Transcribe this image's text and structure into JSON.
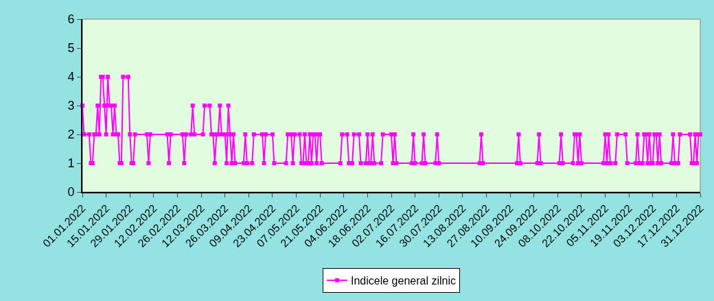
{
  "chart_data": {
    "type": "line",
    "x": [
      "2022-01-01",
      "2022-01-02",
      "2022-01-05",
      "2022-01-06",
      "2022-01-07",
      "2022-01-08",
      "2022-01-09",
      "2022-01-10",
      "2022-01-11",
      "2022-01-12",
      "2022-01-13",
      "2022-01-14",
      "2022-01-15",
      "2022-01-16",
      "2022-01-17",
      "2022-01-18",
      "2022-01-19",
      "2022-01-20",
      "2022-01-21",
      "2022-01-22",
      "2022-01-23",
      "2022-01-24",
      "2022-01-25",
      "2022-01-28",
      "2022-01-29",
      "2022-01-30",
      "2022-01-31",
      "2022-02-01",
      "2022-02-08",
      "2022-02-09",
      "2022-02-10",
      "2022-02-20",
      "2022-02-21",
      "2022-02-22",
      "2022-03-01",
      "2022-03-02",
      "2022-03-03",
      "2022-03-06",
      "2022-03-07",
      "2022-03-08",
      "2022-03-13",
      "2022-03-14",
      "2022-03-17",
      "2022-03-18",
      "2022-03-19",
      "2022-03-20",
      "2022-03-21",
      "2022-03-22",
      "2022-03-23",
      "2022-03-24",
      "2022-03-26",
      "2022-03-27",
      "2022-03-28",
      "2022-03-29",
      "2022-03-30",
      "2022-03-31",
      "2022-04-01",
      "2022-04-06",
      "2022-04-07",
      "2022-04-08",
      "2022-04-11",
      "2022-04-12",
      "2022-04-17",
      "2022-04-18",
      "2022-04-19",
      "2022-04-23",
      "2022-04-24",
      "2022-05-01",
      "2022-05-02",
      "2022-05-04",
      "2022-05-05",
      "2022-05-06",
      "2022-05-09",
      "2022-05-10",
      "2022-05-11",
      "2022-05-12",
      "2022-05-13",
      "2022-05-14",
      "2022-05-15",
      "2022-05-16",
      "2022-05-17",
      "2022-05-18",
      "2022-05-19",
      "2022-05-20",
      "2022-05-21",
      "2022-05-22",
      "2022-06-02",
      "2022-06-03",
      "2022-06-06",
      "2022-06-07",
      "2022-06-09",
      "2022-06-10",
      "2022-06-13",
      "2022-06-14",
      "2022-06-17",
      "2022-06-18",
      "2022-06-19",
      "2022-06-20",
      "2022-06-21",
      "2022-06-22",
      "2022-06-26",
      "2022-06-27",
      "2022-07-02",
      "2022-07-03",
      "2022-07-04",
      "2022-07-05",
      "2022-07-14",
      "2022-07-15",
      "2022-07-16",
      "2022-07-20",
      "2022-07-21",
      "2022-07-22",
      "2022-07-28",
      "2022-07-29",
      "2022-07-30",
      "2022-08-23",
      "2022-08-24",
      "2022-08-25",
      "2022-09-14",
      "2022-09-15",
      "2022-09-16",
      "2022-09-26",
      "2022-09-27",
      "2022-09-28",
      "2022-10-09",
      "2022-10-10",
      "2022-10-11",
      "2022-10-17",
      "2022-10-18",
      "2022-10-19",
      "2022-10-20",
      "2022-10-21",
      "2022-10-22",
      "2022-11-04",
      "2022-11-05",
      "2022-11-06",
      "2022-11-07",
      "2022-11-08",
      "2022-11-11",
      "2022-11-12",
      "2022-11-17",
      "2022-11-18",
      "2022-11-23",
      "2022-11-24",
      "2022-11-25",
      "2022-11-27",
      "2022-11-28",
      "2022-11-29",
      "2022-11-30",
      "2022-12-01",
      "2022-12-02",
      "2022-12-03",
      "2022-12-04",
      "2022-12-05",
      "2022-12-06",
      "2022-12-07",
      "2022-12-08",
      "2022-12-14",
      "2022-12-15",
      "2022-12-16",
      "2022-12-18",
      "2022-12-19",
      "2022-12-25",
      "2022-12-26",
      "2022-12-27",
      "2022-12-28",
      "2022-12-29",
      "2022-12-30",
      "2022-12-31"
    ],
    "series": [
      {
        "name": "Indicele general zilnic",
        "color": "#ff00ff",
        "values": [
          3,
          2,
          2,
          1,
          1,
          2,
          2,
          3,
          2,
          4,
          4,
          3,
          2,
          4,
          3,
          3,
          2,
          3,
          2,
          2,
          1,
          1,
          4,
          4,
          2,
          1,
          1,
          2,
          2,
          1,
          2,
          2,
          1,
          2,
          2,
          1,
          2,
          2,
          3,
          2,
          2,
          3,
          3,
          2,
          2,
          1,
          2,
          2,
          3,
          2,
          2,
          1,
          3,
          2,
          1,
          2,
          1,
          1,
          2,
          1,
          1,
          2,
          2,
          1,
          2,
          2,
          1,
          1,
          2,
          2,
          1,
          2,
          2,
          1,
          1,
          2,
          1,
          1,
          2,
          1,
          2,
          2,
          1,
          2,
          2,
          1,
          1,
          2,
          2,
          1,
          1,
          2,
          2,
          1,
          1,
          2,
          1,
          1,
          2,
          1,
          1,
          2,
          2,
          1,
          2,
          1,
          1,
          2,
          1,
          1,
          2,
          1,
          1,
          2,
          1,
          1,
          2,
          1,
          1,
          2,
          1,
          1,
          2,
          1,
          1,
          2,
          1,
          1,
          2,
          2,
          1,
          2,
          1,
          1,
          2,
          1,
          2,
          1,
          1,
          2,
          2,
          1,
          1,
          2,
          1,
          1,
          2,
          2,
          1,
          2,
          1,
          1,
          2,
          2,
          1,
          2,
          1,
          1,
          2,
          1,
          1,
          2,
          2,
          1,
          1,
          2,
          1,
          2,
          2
        ]
      }
    ],
    "xlim": [
      "2022-01-01",
      "2022-12-31"
    ],
    "xticks": [
      {
        "value": "2022-01-01",
        "label": "01.01.2022"
      },
      {
        "value": "2022-01-15",
        "label": "15.01.2022"
      },
      {
        "value": "2022-01-29",
        "label": "29.01.2022"
      },
      {
        "value": "2022-02-12",
        "label": "12.02.2022"
      },
      {
        "value": "2022-02-26",
        "label": "26.02.2022"
      },
      {
        "value": "2022-03-12",
        "label": "12.03.2022"
      },
      {
        "value": "2022-03-26",
        "label": "26.03.2022"
      },
      {
        "value": "2022-04-09",
        "label": "09.04.2022"
      },
      {
        "value": "2022-04-23",
        "label": "23.04.2022"
      },
      {
        "value": "2022-05-07",
        "label": "07.05.2022"
      },
      {
        "value": "2022-05-21",
        "label": "21.05.2022"
      },
      {
        "value": "2022-06-04",
        "label": "04.06.2022"
      },
      {
        "value": "2022-06-18",
        "label": "18.06.2022"
      },
      {
        "value": "2022-07-02",
        "label": "02.07.2022"
      },
      {
        "value": "2022-07-16",
        "label": "16.07.2022"
      },
      {
        "value": "2022-07-30",
        "label": "30.07.2022"
      },
      {
        "value": "2022-08-13",
        "label": "13.08.2022"
      },
      {
        "value": "2022-08-27",
        "label": "27.08.2022"
      },
      {
        "value": "2022-09-10",
        "label": "10.09.2022"
      },
      {
        "value": "2022-09-24",
        "label": "24.09.2022"
      },
      {
        "value": "2022-10-08",
        "label": "08.10.2022"
      },
      {
        "value": "2022-10-22",
        "label": "22.10.2022"
      },
      {
        "value": "2022-11-05",
        "label": "05.11.2022"
      },
      {
        "value": "2022-11-19",
        "label": "19.11.2022"
      },
      {
        "value": "2022-12-03",
        "label": "03.12.2022"
      },
      {
        "value": "2022-12-17",
        "label": "17.12.2022"
      },
      {
        "value": "2022-12-31",
        "label": "31.12.2022"
      }
    ],
    "ylim": [
      0,
      6
    ],
    "yticks": [
      0,
      1,
      2,
      3,
      4,
      5,
      6
    ],
    "grid": false,
    "legend": "bottom",
    "marker": "square",
    "line_style": "solid"
  }
}
